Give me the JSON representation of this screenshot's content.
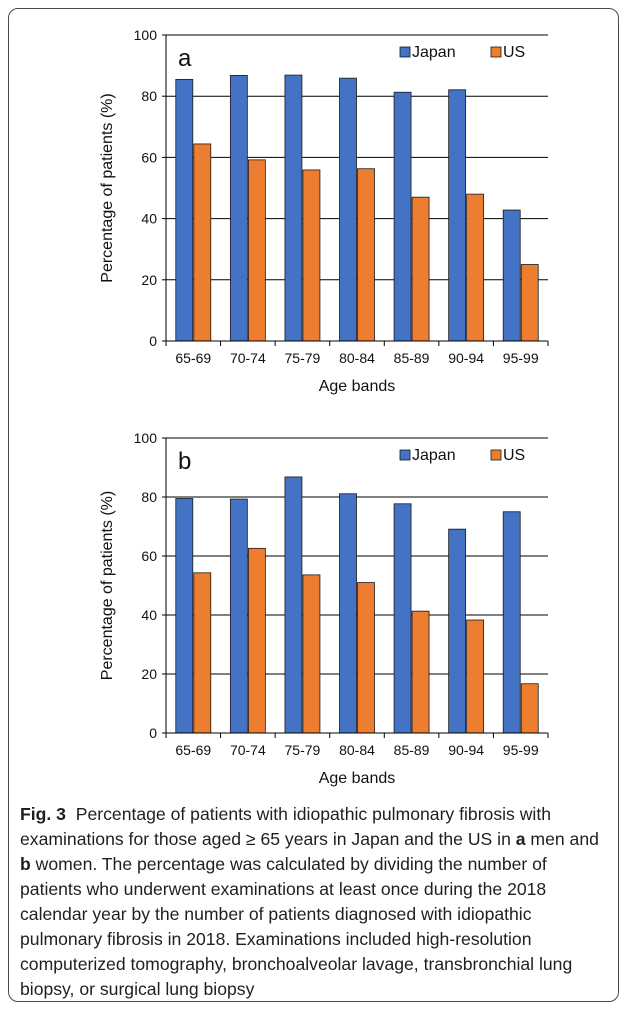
{
  "chart_data": [
    {
      "type": "bar",
      "panel_label": "a",
      "categories": [
        "65-69",
        "70-74",
        "75-79",
        "80-84",
        "85-89",
        "90-94",
        "95-99"
      ],
      "series": [
        {
          "name": "Japan",
          "color": "#4472C4",
          "values": [
            85.5,
            86.8,
            86.9,
            85.9,
            81.3,
            82.1,
            42.8
          ]
        },
        {
          "name": "US",
          "color": "#ED7D31",
          "values": [
            64.4,
            59.2,
            55.9,
            56.3,
            47.0,
            48.0,
            25.0
          ]
        }
      ],
      "xlabel": "Age bands",
      "ylabel": "Percentage of patients (%)",
      "ylim": [
        0,
        100
      ],
      "yticks": [
        0,
        20,
        40,
        60,
        80,
        100
      ],
      "grid": true,
      "legend": "top-right"
    },
    {
      "type": "bar",
      "panel_label": "b",
      "categories": [
        "65-69",
        "70-74",
        "75-79",
        "80-84",
        "85-89",
        "90-94",
        "95-99"
      ],
      "series": [
        {
          "name": "Japan",
          "color": "#4472C4",
          "values": [
            79.5,
            79.3,
            86.8,
            81.1,
            77.7,
            69.1,
            75.0
          ]
        },
        {
          "name": "US",
          "color": "#ED7D31",
          "values": [
            54.3,
            62.6,
            53.6,
            51.0,
            41.3,
            38.3,
            16.7
          ]
        }
      ],
      "xlabel": "Age bands",
      "ylabel": "Percentage of patients (%)",
      "ylim": [
        0,
        100
      ],
      "yticks": [
        0,
        20,
        40,
        60,
        80,
        100
      ],
      "grid": true,
      "legend": "top-right"
    }
  ],
  "caption": {
    "figure_label": "Fig. 3",
    "p1": "Percentage of patients with idiopathic pulmonary fibrosis with examinations for those aged ≥ 65 years in Japan and the US in ",
    "a_label": "a",
    "p2": " men and ",
    "b_label": "b",
    "p3": " women. The percentage was calculated by dividing the number of patients who underwent examinations at least once during the 2018 calendar year by the number of patients diagnosed with idiopathic pulmonary fibrosis in 2018. Examinations included high-resolution computerized tomography, bronchoalveolar lavage, transbronchial lung biopsy, or surgical lung biopsy"
  }
}
